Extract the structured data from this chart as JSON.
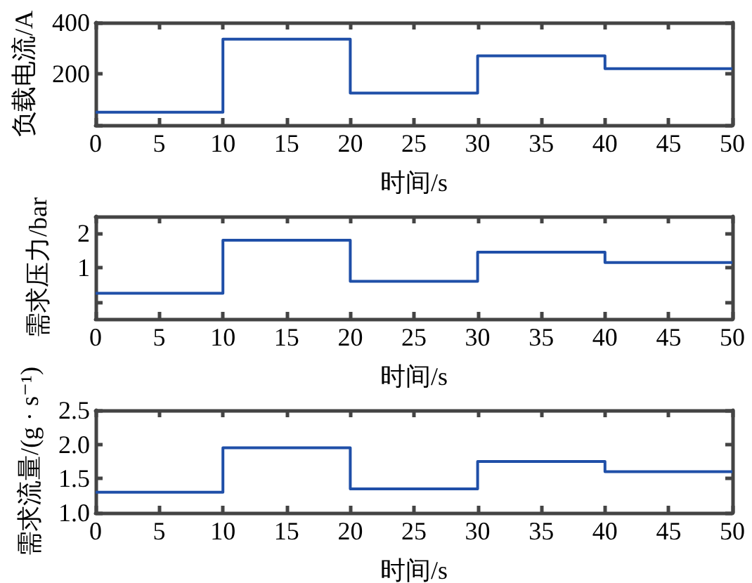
{
  "chart_data": [
    {
      "type": "step",
      "x": [
        0,
        10,
        20,
        30,
        40,
        50
      ],
      "xlabel": "时间/s",
      "ylabel": "负载电流/A",
      "xlim": [
        0,
        50
      ],
      "xticks": [
        0,
        5,
        10,
        15,
        20,
        25,
        30,
        35,
        40,
        45,
        50
      ],
      "ylim": [
        0,
        400
      ],
      "yticks": [
        {
          "value": 0,
          "label": null
        },
        200,
        400
      ],
      "grid": false,
      "series": [
        {
          "color": "#1f4fa8",
          "values": [
            50,
            335,
            125,
            270,
            220,
            220
          ]
        }
      ]
    },
    {
      "type": "step",
      "x": [
        0,
        10,
        20,
        30,
        40,
        50
      ],
      "xlabel": "时间/s",
      "ylabel": "需求压力/bar",
      "xlim": [
        0,
        50
      ],
      "xticks": [
        0,
        5,
        10,
        15,
        20,
        25,
        30,
        35,
        40,
        45,
        50
      ],
      "ylim": [
        -0.5,
        2.5
      ],
      "yticks": [
        {
          "value": 0,
          "label": null
        },
        1,
        2
      ],
      "grid": false,
      "series": [
        {
          "color": "#1f4fa8",
          "values": [
            0.25,
            1.8,
            0.6,
            1.45,
            1.15,
            1.15
          ]
        }
      ]
    },
    {
      "type": "step",
      "x": [
        0,
        10,
        20,
        30,
        40,
        50
      ],
      "xlabel": "时间/s",
      "ylabel": "需求流量/(g · s⁻¹)",
      "xlim": [
        0,
        50
      ],
      "xticks": [
        0,
        5,
        10,
        15,
        20,
        25,
        30,
        35,
        40,
        45,
        50
      ],
      "ylim": [
        1.0,
        2.5
      ],
      "yticks": [
        {
          "value": 1.0,
          "label": "1.0"
        },
        1.5,
        {
          "value": 2.0,
          "label": "2.0"
        },
        2.5
      ],
      "grid": false,
      "series": [
        {
          "color": "#1f4fa8",
          "values": [
            1.3,
            1.95,
            1.35,
            1.75,
            1.6,
            1.6
          ]
        }
      ]
    }
  ]
}
